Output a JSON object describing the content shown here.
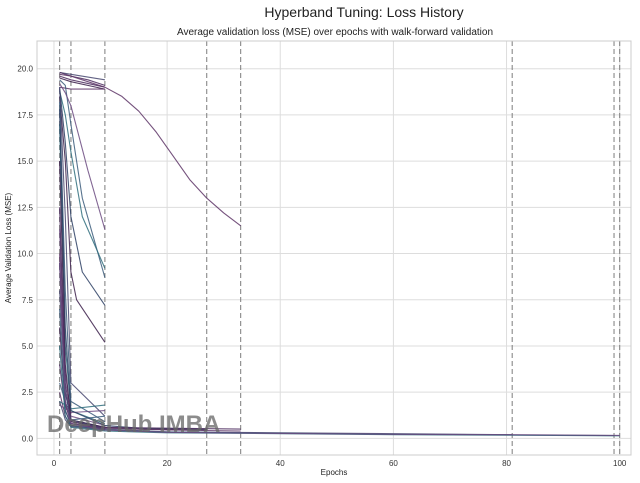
{
  "chart_data": {
    "type": "line",
    "title": "Hyperband Tuning: Loss History",
    "subtitle": "Average validation loss (MSE) over epochs with walk-forward validation",
    "xlabel": "Epochs",
    "ylabel": "Average Validation Loss (MSE)",
    "xlim": [
      -3,
      102
    ],
    "ylim": [
      -0.9,
      21.5
    ],
    "x_ticks": [
      0,
      20,
      40,
      60,
      80,
      100
    ],
    "y_ticks": [
      0.0,
      2.5,
      5.0,
      7.5,
      10.0,
      12.5,
      15.0,
      17.5,
      20.0
    ],
    "y_tick_labels": [
      "0.0",
      "2.5",
      "5.0",
      "7.5",
      "10.0",
      "12.5",
      "15.0",
      "17.5",
      "20.0"
    ],
    "grid": true,
    "vlines": {
      "epochs": [
        1,
        3,
        9,
        27,
        33,
        81,
        99,
        100
      ],
      "style": "dashed",
      "color": "#888888"
    },
    "series_colors": [
      "#3b1f4a",
      "#4b2a5e",
      "#5d3466",
      "#47476f",
      "#3a5a7a",
      "#2f6d7c",
      "#6b4a80",
      "#2c3e63"
    ],
    "series": [
      {
        "x": [
          1,
          3,
          9
        ],
        "y": [
          19.5,
          19.3,
          18.9
        ]
      },
      {
        "x": [
          1,
          3,
          9
        ],
        "y": [
          19.6,
          19.4,
          19.0
        ]
      },
      {
        "x": [
          1,
          3,
          9
        ],
        "y": [
          19.0,
          18.9,
          18.9
        ]
      },
      {
        "x": [
          1,
          3,
          9
        ],
        "y": [
          19.8,
          19.7,
          19.4
        ]
      },
      {
        "x": [
          1,
          2,
          3,
          5,
          9
        ],
        "y": [
          19.4,
          19.1,
          17.0,
          13.0,
          8.7
        ]
      },
      {
        "x": [
          1,
          2,
          3,
          5,
          9
        ],
        "y": [
          18.8,
          17.5,
          15.5,
          12.0,
          9.2
        ]
      },
      {
        "x": [
          1,
          2,
          3,
          6,
          9
        ],
        "y": [
          19.2,
          18.7,
          18.0,
          14.5,
          11.3
        ]
      },
      {
        "x": [
          1,
          2,
          3,
          5,
          9
        ],
        "y": [
          19.0,
          16.0,
          12.0,
          9.0,
          7.2
        ]
      },
      {
        "x": [
          1,
          2,
          3,
          4,
          9
        ],
        "y": [
          18.5,
          15.0,
          9.0,
          7.5,
          5.2
        ]
      },
      {
        "x": [
          1,
          3,
          6,
          9
        ],
        "y": [
          19.8,
          19.6,
          19.4,
          19.1
        ]
      },
      {
        "x": [
          1,
          3,
          6,
          9,
          12,
          15,
          18,
          21,
          24,
          27,
          30,
          33
        ],
        "y": [
          19.7,
          19.6,
          19.3,
          19.0,
          18.5,
          17.7,
          16.6,
          15.3,
          14.0,
          13.0,
          12.2,
          11.5
        ]
      },
      {
        "x": [
          1,
          2,
          3,
          9
        ],
        "y": [
          19.0,
          12.0,
          3.0,
          1.2
        ]
      },
      {
        "x": [
          1,
          2,
          3,
          9
        ],
        "y": [
          18.2,
          8.0,
          2.0,
          0.9
        ]
      },
      {
        "x": [
          1,
          2,
          3,
          9
        ],
        "y": [
          17.0,
          5.0,
          1.5,
          0.8
        ]
      },
      {
        "x": [
          1,
          2,
          3,
          9
        ],
        "y": [
          11.3,
          3.5,
          1.2,
          0.7
        ]
      },
      {
        "x": [
          1,
          2,
          3,
          9
        ],
        "y": [
          9.5,
          2.5,
          1.0,
          0.6
        ]
      },
      {
        "x": [
          1,
          2,
          3,
          9
        ],
        "y": [
          6.0,
          1.8,
          0.9,
          0.55
        ]
      },
      {
        "x": [
          1,
          2,
          3,
          9
        ],
        "y": [
          4.0,
          1.5,
          0.8,
          0.5
        ]
      },
      {
        "x": [
          1,
          2,
          3,
          9
        ],
        "y": [
          2.5,
          1.2,
          0.7,
          0.5
        ]
      },
      {
        "x": [
          1,
          2,
          3,
          9
        ],
        "y": [
          2.0,
          1.0,
          0.65,
          0.45
        ]
      },
      {
        "x": [
          1,
          3,
          9
        ],
        "y": [
          3.0,
          1.0,
          1.2
        ]
      },
      {
        "x": [
          1,
          3,
          9
        ],
        "y": [
          2.0,
          1.6,
          1.8
        ]
      },
      {
        "x": [
          1,
          3,
          9
        ],
        "y": [
          1.8,
          1.4,
          1.5
        ]
      },
      {
        "x": [
          1,
          2,
          3,
          9,
          15,
          27
        ],
        "y": [
          17.8,
          6.0,
          1.5,
          0.7,
          0.55,
          0.5
        ]
      },
      {
        "x": [
          1,
          2,
          3,
          9,
          15,
          27
        ],
        "y": [
          15.0,
          4.0,
          1.0,
          0.6,
          0.5,
          0.45
        ]
      },
      {
        "x": [
          1,
          2,
          3,
          9,
          20,
          33
        ],
        "y": [
          12.5,
          3.0,
          0.9,
          0.6,
          0.55,
          0.5
        ]
      },
      {
        "x": [
          1,
          2,
          3,
          9,
          20,
          33
        ],
        "y": [
          10.0,
          2.0,
          0.8,
          0.55,
          0.45,
          0.4
        ]
      },
      {
        "x": [
          1,
          2,
          3,
          9,
          20,
          40,
          60,
          81
        ],
        "y": [
          8.0,
          2.5,
          1.0,
          0.5,
          0.35,
          0.3,
          0.25,
          0.2
        ]
      },
      {
        "x": [
          1,
          2,
          3,
          9,
          20,
          40,
          60,
          81,
          99
        ],
        "y": [
          7.0,
          1.5,
          0.7,
          0.45,
          0.35,
          0.28,
          0.22,
          0.18,
          0.15
        ]
      },
      {
        "x": [
          1,
          2,
          3,
          9,
          20,
          40,
          60,
          81,
          100
        ],
        "y": [
          5.0,
          1.2,
          0.6,
          0.4,
          0.3,
          0.25,
          0.2,
          0.17,
          0.14
        ]
      },
      {
        "x": [
          1,
          2,
          3,
          9,
          20,
          40,
          60,
          81,
          100
        ],
        "y": [
          9.5,
          2.0,
          0.8,
          0.45,
          0.33,
          0.27,
          0.22,
          0.2,
          0.16
        ]
      }
    ]
  },
  "watermark": {
    "text": "DeepHub IMBA"
  }
}
